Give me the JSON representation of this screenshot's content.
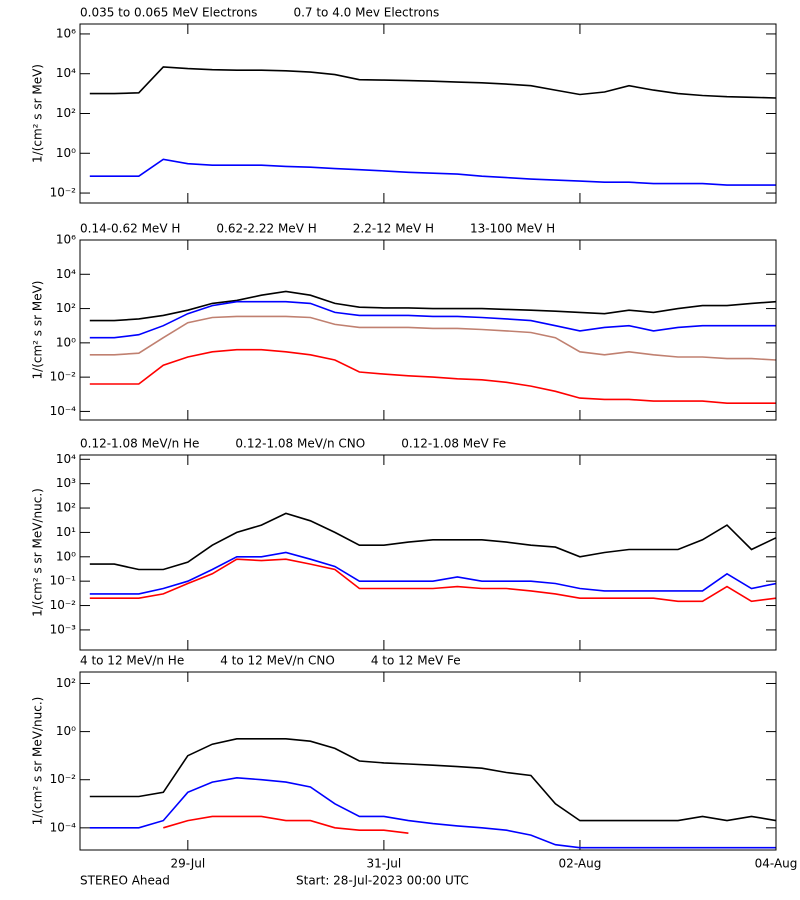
{
  "chart_data": [
    {
      "type": "line",
      "log": true,
      "ylabel": "1/(cm² s sr MeV)",
      "xlim": [
        -0.1,
        7
      ],
      "ylim": [
        0.00316,
        3160000
      ],
      "yticks": [
        {
          "value": 0.01,
          "label": "10⁻²"
        },
        {
          "value": 1,
          "label": "10⁰"
        },
        {
          "value": 100,
          "label": "10²"
        },
        {
          "value": 10000,
          "label": "10⁴"
        },
        {
          "value": 1000000,
          "label": "10⁶"
        }
      ],
      "x": [
        0,
        0.25,
        0.5,
        0.75,
        1,
        1.25,
        1.5,
        1.75,
        2,
        2.25,
        2.5,
        2.75,
        3,
        3.25,
        3.5,
        3.75,
        4,
        4.25,
        4.5,
        4.75,
        5,
        5.25,
        5.5,
        5.75,
        6,
        6.25,
        6.5,
        6.75,
        7
      ],
      "series": [
        {
          "name": "0.035 to 0.065 MeV Electrons",
          "color": "#000000",
          "values": [
            1000,
            1000,
            1100,
            22000,
            18000,
            16000,
            15000,
            15000,
            14000,
            12000,
            9000,
            5000,
            4800,
            4500,
            4200,
            3800,
            3500,
            3000,
            2500,
            1500,
            900,
            1200,
            2500,
            1500,
            1000,
            800,
            700,
            650,
            600
          ]
        },
        {
          "name": "0.7 to 4.0 Mev Electrons",
          "color": "#0000ff",
          "values": [
            0.07,
            0.07,
            0.07,
            0.5,
            0.3,
            0.25,
            0.25,
            0.25,
            0.22,
            0.2,
            0.17,
            0.15,
            0.13,
            0.11,
            0.1,
            0.09,
            0.07,
            0.06,
            0.05,
            0.045,
            0.04,
            0.035,
            0.035,
            0.03,
            0.03,
            0.03,
            0.025,
            0.025,
            0.025
          ]
        }
      ]
    },
    {
      "type": "line",
      "log": true,
      "ylabel": "1/(cm² s sr MeV)",
      "xlim": [
        -0.1,
        7
      ],
      "ylim": [
        3.16e-05,
        1000000
      ],
      "yticks": [
        {
          "value": 0.0001,
          "label": "10⁻⁴"
        },
        {
          "value": 0.01,
          "label": "10⁻²"
        },
        {
          "value": 1,
          "label": "10⁰"
        },
        {
          "value": 100,
          "label": "10²"
        },
        {
          "value": 10000,
          "label": "10⁴"
        },
        {
          "value": 1000000,
          "label": "10⁶"
        }
      ],
      "x": [
        0,
        0.25,
        0.5,
        0.75,
        1,
        1.25,
        1.5,
        1.75,
        2,
        2.25,
        2.5,
        2.75,
        3,
        3.25,
        3.5,
        3.75,
        4,
        4.25,
        4.5,
        4.75,
        5,
        5.25,
        5.5,
        5.75,
        6,
        6.25,
        6.5,
        6.75,
        7
      ],
      "series": [
        {
          "name": "0.14-0.62 MeV H",
          "color": "#000000",
          "values": [
            20,
            20,
            25,
            40,
            80,
            200,
            300,
            600,
            1000,
            600,
            200,
            120,
            110,
            110,
            100,
            100,
            100,
            90,
            80,
            70,
            60,
            50,
            80,
            60,
            100,
            150,
            150,
            200,
            250
          ]
        },
        {
          "name": "0.62-2.22 MeV H",
          "color": "#0000ff",
          "values": [
            2,
            2,
            3,
            10,
            50,
            150,
            250,
            250,
            250,
            200,
            60,
            40,
            40,
            40,
            35,
            35,
            30,
            25,
            20,
            10,
            5,
            8,
            10,
            5,
            8,
            10,
            10,
            10,
            10
          ]
        },
        {
          "name": "2.2-12 MeV H",
          "color": "#c08070",
          "values": [
            0.2,
            0.2,
            0.25,
            2,
            15,
            30,
            35,
            35,
            35,
            30,
            12,
            8,
            8,
            8,
            7,
            7,
            6,
            5,
            4,
            2,
            0.3,
            0.2,
            0.3,
            0.2,
            0.15,
            0.15,
            0.12,
            0.12,
            0.1
          ]
        },
        {
          "name": "13-100 MeV H",
          "color": "#ff0000",
          "values": [
            0.004,
            0.004,
            0.004,
            0.05,
            0.15,
            0.3,
            0.4,
            0.4,
            0.3,
            0.2,
            0.1,
            0.02,
            0.015,
            0.012,
            0.01,
            0.008,
            0.007,
            0.005,
            0.003,
            0.0015,
            0.0006,
            0.0005,
            0.0005,
            0.0004,
            0.0004,
            0.0004,
            0.0003,
            0.0003,
            0.0003
          ]
        }
      ]
    },
    {
      "type": "line",
      "log": true,
      "ylabel": "1/(cm² s sr MeV/nuc.)",
      "xlim": [
        -0.1,
        7
      ],
      "ylim": [
        0.00015,
        15000
      ],
      "yticks": [
        {
          "value": 0.001,
          "label": "10⁻³"
        },
        {
          "value": 0.01,
          "label": "10⁻²"
        },
        {
          "value": 0.1,
          "label": "10⁻¹"
        },
        {
          "value": 1,
          "label": "10⁰"
        },
        {
          "value": 10,
          "label": "10¹"
        },
        {
          "value": 100,
          "label": "10²"
        },
        {
          "value": 1000,
          "label": "10³"
        },
        {
          "value": 10000,
          "label": "10⁴"
        }
      ],
      "x": [
        0,
        0.25,
        0.5,
        0.75,
        1,
        1.25,
        1.5,
        1.75,
        2,
        2.25,
        2.5,
        2.75,
        3,
        3.25,
        3.5,
        3.75,
        4,
        4.25,
        4.5,
        4.75,
        5,
        5.25,
        5.5,
        5.75,
        6,
        6.25,
        6.5,
        6.75,
        7
      ],
      "series": [
        {
          "name": "0.12-1.08 MeV/n He",
          "color": "#000000",
          "values": [
            0.5,
            0.5,
            0.3,
            0.3,
            0.6,
            3,
            10,
            20,
            60,
            30,
            10,
            3,
            3,
            4,
            5,
            5,
            5,
            4,
            3,
            2.5,
            1,
            1.5,
            2,
            2,
            2,
            5,
            20,
            2,
            6
          ]
        },
        {
          "name": "0.12-1.08 MeV/n CNO",
          "color": "#0000ff",
          "values": [
            0.03,
            0.03,
            0.03,
            0.05,
            0.1,
            0.3,
            1,
            1,
            1.5,
            0.8,
            0.4,
            0.1,
            0.1,
            0.1,
            0.1,
            0.15,
            0.1,
            0.1,
            0.1,
            0.08,
            0.05,
            0.04,
            0.04,
            0.04,
            0.04,
            0.04,
            0.2,
            0.05,
            0.08
          ]
        },
        {
          "name": "0.12-1.08 MeV Fe",
          "color": "#ff0000",
          "values": [
            0.02,
            0.02,
            0.02,
            0.03,
            0.08,
            0.2,
            0.8,
            0.7,
            0.8,
            0.5,
            0.3,
            0.05,
            0.05,
            0.05,
            0.05,
            0.06,
            0.05,
            0.05,
            0.04,
            0.03,
            0.02,
            0.02,
            0.02,
            0.02,
            0.015,
            0.015,
            0.06,
            0.015,
            0.02
          ]
        }
      ]
    },
    {
      "type": "line",
      "log": true,
      "ylabel": "1/(cm² s sr MeV/nuc.)",
      "xlim": [
        -0.1,
        7
      ],
      "ylim": [
        1.2e-05,
        300
      ],
      "yticks": [
        {
          "value": 0.0001,
          "label": "10⁻⁴"
        },
        {
          "value": 0.01,
          "label": "10⁻²"
        },
        {
          "value": 1,
          "label": "10⁰"
        },
        {
          "value": 100,
          "label": "10²"
        }
      ],
      "xticks": [
        {
          "value": 1,
          "label": "29-Jul"
        },
        {
          "value": 3,
          "label": "31-Jul"
        },
        {
          "value": 5,
          "label": "02-Aug"
        },
        {
          "value": 7,
          "label": "04-Aug"
        }
      ],
      "x": [
        0,
        0.25,
        0.5,
        0.75,
        1,
        1.25,
        1.5,
        1.75,
        2,
        2.25,
        2.5,
        2.75,
        3,
        3.25,
        3.5,
        3.75,
        4,
        4.25,
        4.5,
        4.75,
        5,
        5.25,
        5.5,
        5.75,
        6,
        6.25,
        6.5,
        6.75,
        7
      ],
      "series": [
        {
          "name": "4 to 12 MeV/n He",
          "color": "#000000",
          "values": [
            0.002,
            0.002,
            0.002,
            0.003,
            0.1,
            0.3,
            0.5,
            0.5,
            0.5,
            0.4,
            0.2,
            0.06,
            0.05,
            0.045,
            0.04,
            0.035,
            0.03,
            0.02,
            0.015,
            0.001,
            0.0002,
            0.0002,
            0.0002,
            0.0002,
            0.0002,
            0.0003,
            0.0002,
            0.0003,
            0.0002
          ]
        },
        {
          "name": "4 to 12 MeV/n CNO",
          "color": "#0000ff",
          "values": [
            0.0001,
            0.0001,
            0.0001,
            0.0002,
            0.003,
            0.008,
            0.012,
            0.01,
            0.008,
            0.005,
            0.001,
            0.0003,
            0.0003,
            0.0002,
            0.00015,
            0.00012,
            0.0001,
            8e-05,
            5e-05,
            2e-05,
            1.5e-05,
            1.5e-05,
            1.5e-05,
            1.5e-05,
            1.5e-05,
            1.5e-05,
            1.5e-05,
            1.5e-05,
            1.5e-05
          ]
        },
        {
          "name": "4 to 12 MeV Fe",
          "color": "#ff0000",
          "values": [
            null,
            null,
            null,
            0.0001,
            0.0002,
            0.0003,
            0.0003,
            0.0003,
            0.0002,
            0.0002,
            0.0001,
            8e-05,
            8e-05,
            6e-05,
            null,
            null,
            null,
            null,
            null,
            null,
            null,
            null,
            null,
            null,
            null,
            null,
            null,
            null,
            null
          ]
        }
      ]
    }
  ],
  "footer": {
    "left": "STEREO Ahead",
    "center": "Start: 28-Jul-2023 00:00 UTC"
  }
}
